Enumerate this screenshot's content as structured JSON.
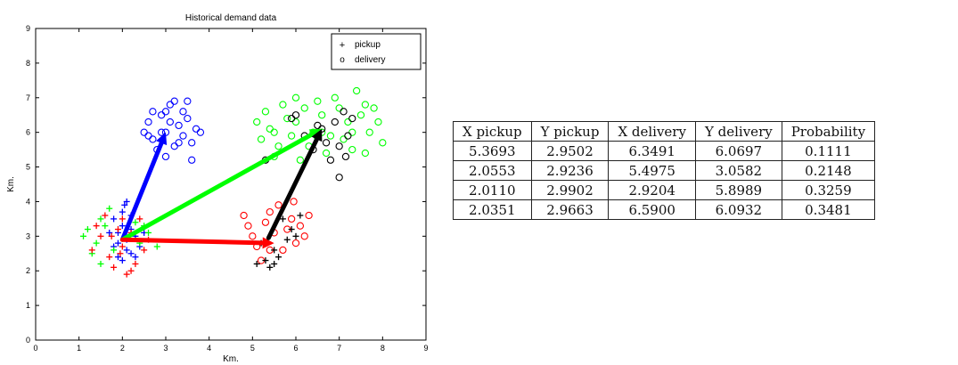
{
  "chart_data": [
    {
      "type": "scatter",
      "title": "Historical demand data",
      "xlabel": "Km.",
      "ylabel": "Km.",
      "xlim": [
        0,
        9
      ],
      "ylim": [
        0,
        9
      ],
      "xticks": [
        0,
        1,
        2,
        3,
        4,
        5,
        6,
        7,
        8,
        9
      ],
      "yticks": [
        0,
        1,
        2,
        3,
        4,
        5,
        6,
        7,
        8,
        9
      ],
      "grid": false,
      "legend": {
        "placement": "top-right",
        "entries": [
          {
            "marker": "+",
            "label": "pickup"
          },
          {
            "marker": "o",
            "label": "delivery"
          }
        ]
      },
      "series": [
        {
          "color": "#0000ff",
          "marker": "+",
          "points": [
            [
              1.9,
              3.1
            ],
            [
              2.1,
              2.9
            ],
            [
              2.0,
              3.3
            ],
            [
              1.8,
              2.7
            ],
            [
              2.2,
              3.2
            ],
            [
              2.1,
              2.6
            ],
            [
              1.9,
              2.4
            ],
            [
              2.3,
              3.0
            ],
            [
              2.0,
              3.7
            ],
            [
              2.1,
              4.0
            ],
            [
              1.7,
              3.1
            ],
            [
              2.2,
              2.5
            ],
            [
              2.4,
              2.7
            ],
            [
              2.0,
              2.3
            ],
            [
              2.5,
              3.1
            ],
            [
              1.8,
              3.5
            ],
            [
              2.2,
              3.6
            ],
            [
              2.3,
              2.4
            ],
            [
              1.9,
              2.8
            ],
            [
              2.05,
              3.9
            ]
          ]
        },
        {
          "color": "#0000ff",
          "marker": "o",
          "points": [
            [
              2.6,
              6.3
            ],
            [
              2.7,
              5.8
            ],
            [
              2.9,
              6.5
            ],
            [
              3.0,
              6.0
            ],
            [
              3.1,
              6.8
            ],
            [
              3.2,
              5.6
            ],
            [
              3.3,
              6.2
            ],
            [
              3.5,
              6.4
            ],
            [
              3.4,
              5.9
            ],
            [
              2.8,
              5.5
            ],
            [
              3.6,
              5.7
            ],
            [
              3.7,
              6.1
            ],
            [
              2.5,
              6.0
            ],
            [
              3.0,
              6.6
            ],
            [
              3.2,
              6.9
            ],
            [
              3.4,
              6.6
            ],
            [
              2.7,
              6.6
            ],
            [
              3.0,
              5.3
            ],
            [
              3.8,
              6.0
            ],
            [
              3.6,
              5.2
            ],
            [
              3.3,
              5.7
            ],
            [
              2.9,
              6.0
            ],
            [
              3.1,
              6.3
            ],
            [
              2.6,
              5.9
            ],
            [
              3.5,
              6.9
            ]
          ]
        },
        {
          "color": "#00ff00",
          "marker": "+",
          "points": [
            [
              1.2,
              3.2
            ],
            [
              1.4,
              2.8
            ],
            [
              1.5,
              3.5
            ],
            [
              1.3,
              2.5
            ],
            [
              1.1,
              3.0
            ],
            [
              1.6,
              3.3
            ],
            [
              1.5,
              2.2
            ],
            [
              2.4,
              2.8
            ],
            [
              2.6,
              3.1
            ],
            [
              2.3,
              3.4
            ],
            [
              1.8,
              2.6
            ],
            [
              2.8,
              2.7
            ],
            [
              1.7,
              3.8
            ],
            [
              2.5,
              3.3
            ]
          ]
        },
        {
          "color": "#00ff00",
          "marker": "o",
          "points": [
            [
              5.1,
              6.3
            ],
            [
              5.3,
              6.6
            ],
            [
              5.5,
              6.0
            ],
            [
              5.7,
              6.8
            ],
            [
              5.9,
              5.9
            ],
            [
              6.0,
              6.3
            ],
            [
              6.2,
              6.7
            ],
            [
              6.4,
              6.0
            ],
            [
              6.6,
              6.5
            ],
            [
              6.8,
              5.9
            ],
            [
              7.0,
              6.7
            ],
            [
              7.2,
              6.3
            ],
            [
              7.4,
              7.2
            ],
            [
              7.5,
              6.5
            ],
            [
              7.7,
              6.0
            ],
            [
              7.9,
              6.3
            ],
            [
              8.0,
              5.7
            ],
            [
              5.6,
              5.6
            ],
            [
              6.1,
              5.2
            ],
            [
              6.3,
              5.6
            ],
            [
              6.7,
              5.4
            ],
            [
              7.1,
              5.8
            ],
            [
              7.3,
              5.5
            ],
            [
              7.6,
              6.8
            ],
            [
              5.4,
              6.1
            ],
            [
              5.8,
              6.4
            ],
            [
              6.5,
              6.9
            ],
            [
              6.9,
              7.0
            ],
            [
              7.8,
              6.7
            ],
            [
              5.2,
              5.8
            ],
            [
              6.0,
              7.0
            ],
            [
              7.3,
              6.0
            ],
            [
              7.6,
              5.4
            ],
            [
              6.6,
              6.0
            ],
            [
              5.5,
              5.3
            ]
          ]
        },
        {
          "color": "#ff0000",
          "marker": "+",
          "points": [
            [
              1.3,
              2.6
            ],
            [
              1.5,
              3.0
            ],
            [
              1.7,
              2.4
            ],
            [
              1.9,
              3.2
            ],
            [
              2.0,
              2.7
            ],
            [
              2.2,
              3.1
            ],
            [
              2.4,
              3.5
            ],
            [
              2.3,
              2.2
            ],
            [
              2.1,
              1.9
            ],
            [
              1.6,
              3.6
            ],
            [
              1.8,
              2.1
            ],
            [
              2.5,
              2.6
            ],
            [
              1.4,
              3.3
            ],
            [
              2.0,
              3.5
            ],
            [
              2.6,
              2.9
            ],
            [
              1.95,
              2.5
            ],
            [
              2.2,
              2.0
            ],
            [
              1.75,
              3.0
            ]
          ]
        },
        {
          "color": "#ff0000",
          "marker": "o",
          "points": [
            [
              4.8,
              3.6
            ],
            [
              5.0,
              3.0
            ],
            [
              5.1,
              2.7
            ],
            [
              5.3,
              3.4
            ],
            [
              5.4,
              2.6
            ],
            [
              5.6,
              3.9
            ],
            [
              5.8,
              3.2
            ],
            [
              5.9,
              3.5
            ],
            [
              6.0,
              2.8
            ],
            [
              6.2,
              3.0
            ],
            [
              6.3,
              3.6
            ],
            [
              5.2,
              2.3
            ],
            [
              5.5,
              3.1
            ],
            [
              5.7,
              2.6
            ],
            [
              6.1,
              3.3
            ],
            [
              4.9,
              3.3
            ],
            [
              5.95,
              4.0
            ],
            [
              5.4,
              3.7
            ]
          ]
        },
        {
          "color": "#000000",
          "marker": "+",
          "points": [
            [
              5.1,
              2.2
            ],
            [
              5.4,
              2.1
            ],
            [
              5.6,
              2.4
            ],
            [
              5.8,
              2.9
            ],
            [
              6.0,
              3.0
            ],
            [
              5.5,
              2.6
            ],
            [
              5.3,
              2.3
            ],
            [
              5.9,
              3.2
            ],
            [
              6.1,
              3.6
            ],
            [
              5.7,
              3.5
            ],
            [
              5.2,
              2.8
            ],
            [
              5.5,
              2.2
            ]
          ]
        },
        {
          "color": "#000000",
          "marker": "o",
          "points": [
            [
              5.9,
              6.4
            ],
            [
              6.0,
              6.5
            ],
            [
              6.2,
              5.9
            ],
            [
              6.4,
              5.5
            ],
            [
              6.5,
              6.2
            ],
            [
              6.7,
              5.7
            ],
            [
              6.8,
              5.2
            ],
            [
              7.0,
              4.7
            ],
            [
              7.1,
              6.6
            ],
            [
              7.2,
              5.9
            ],
            [
              7.3,
              6.4
            ],
            [
              7.0,
              5.6
            ],
            [
              6.6,
              6.1
            ],
            [
              5.3,
              5.2
            ],
            [
              6.9,
              6.3
            ],
            [
              7.15,
              5.3
            ]
          ]
        }
      ],
      "arrows": [
        {
          "color": "#0000ff",
          "from": [
            2.0,
            2.9
          ],
          "to": [
            3.0,
            6.0
          ]
        },
        {
          "color": "#00ff00",
          "from": [
            2.0,
            2.9
          ],
          "to": [
            6.6,
            6.1
          ]
        },
        {
          "color": "#ff0000",
          "from": [
            2.0,
            2.9
          ],
          "to": [
            5.5,
            2.8
          ]
        },
        {
          "color": "#000000",
          "from": [
            5.37,
            2.95
          ],
          "to": [
            6.6,
            6.1
          ]
        }
      ]
    },
    {
      "type": "table",
      "columns": [
        "X pickup",
        "Y pickup",
        "X delivery",
        "Y delivery",
        "Probability"
      ],
      "rows": [
        [
          "5.3693",
          "2.9502",
          "6.3491",
          "6.0697",
          "0.1111"
        ],
        [
          "2.0553",
          "2.9236",
          "5.4975",
          "3.0582",
          "0.2148"
        ],
        [
          "2.0110",
          "2.9902",
          "2.9204",
          "5.8989",
          "0.3259"
        ],
        [
          "2.0351",
          "2.9663",
          "6.5900",
          "6.0932",
          "0.3481"
        ]
      ]
    }
  ]
}
